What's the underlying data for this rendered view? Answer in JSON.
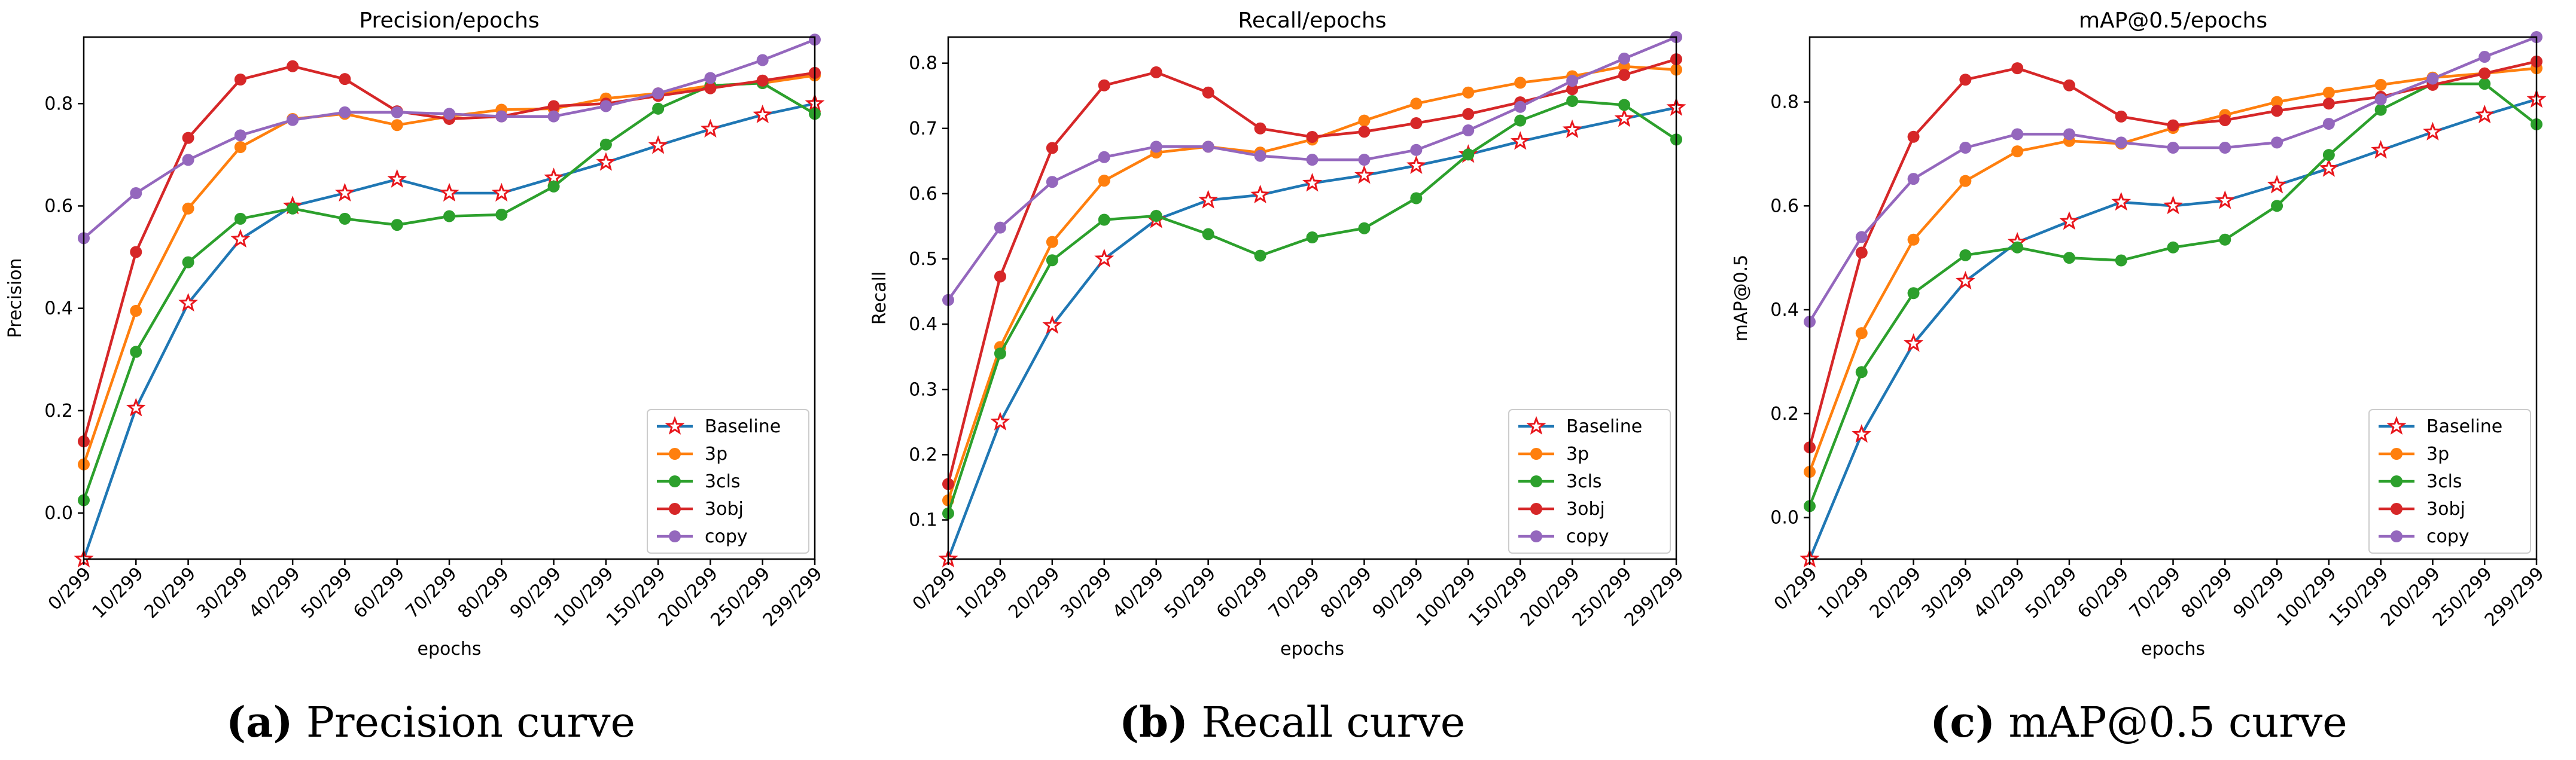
{
  "chart_data": [
    {
      "type": "line",
      "title": "Precision/epochs",
      "xlabel": "epochs",
      "ylabel": "Precision",
      "categories": [
        "0/299",
        "10/299",
        "20/299",
        "30/299",
        "40/299",
        "50/299",
        "60/299",
        "70/299",
        "80/299",
        "90/299",
        "100/299",
        "150/299",
        "200/299",
        "250/299",
        "299/299"
      ],
      "ylim": [
        -0.09,
        0.93
      ],
      "yticks": [
        0.0,
        0.2,
        0.4,
        0.6,
        0.8
      ],
      "ytick_labels": [
        "0.0",
        "0.2",
        "0.4",
        "0.6",
        "0.8"
      ],
      "legend_location": "lower-right",
      "series": [
        {
          "name": "Baseline",
          "color": "#1f77b4",
          "marker": "star",
          "values": [
            -0.09,
            0.205,
            0.41,
            0.535,
            0.6,
            0.625,
            0.652,
            0.625,
            0.625,
            0.655,
            0.685,
            0.718,
            0.75,
            0.778,
            0.8
          ]
        },
        {
          "name": "3p",
          "color": "#ff7f0e",
          "marker": "circle",
          "values": [
            0.095,
            0.395,
            0.595,
            0.715,
            0.77,
            0.78,
            0.758,
            0.775,
            0.788,
            0.79,
            0.81,
            0.82,
            0.835,
            0.84,
            0.855
          ]
        },
        {
          "name": "3cls",
          "color": "#2ca02c",
          "marker": "circle",
          "values": [
            0.025,
            0.315,
            0.49,
            0.575,
            0.595,
            0.575,
            0.563,
            0.58,
            0.583,
            0.638,
            0.72,
            0.79,
            0.835,
            0.84,
            0.78
          ]
        },
        {
          "name": "3obj",
          "color": "#d62728",
          "marker": "circle",
          "values": [
            0.14,
            0.51,
            0.733,
            0.847,
            0.873,
            0.848,
            0.785,
            0.77,
            0.775,
            0.795,
            0.8,
            0.815,
            0.83,
            0.845,
            0.86
          ]
        },
        {
          "name": "copy",
          "color": "#9467bd",
          "marker": "circle",
          "values": [
            0.537,
            0.625,
            0.69,
            0.738,
            0.768,
            0.783,
            0.783,
            0.78,
            0.775,
            0.775,
            0.795,
            0.82,
            0.85,
            0.885,
            0.925
          ]
        }
      ],
      "caption_letter": "(a)",
      "caption_text": " Precision curve"
    },
    {
      "type": "line",
      "title": "Recall/epochs",
      "xlabel": "epochs",
      "ylabel": "Recall",
      "categories": [
        "0/299",
        "10/299",
        "20/299",
        "30/299",
        "40/299",
        "50/299",
        "60/299",
        "70/299",
        "80/299",
        "90/299",
        "100/299",
        "150/299",
        "200/299",
        "250/299",
        "299/299"
      ],
      "ylim": [
        0.04,
        0.84
      ],
      "yticks": [
        0.1,
        0.2,
        0.3,
        0.4,
        0.5,
        0.6,
        0.7,
        0.8
      ],
      "ytick_labels": [
        "0.1",
        "0.2",
        "0.3",
        "0.4",
        "0.5",
        "0.6",
        "0.7",
        "0.8"
      ],
      "legend_location": "lower-right",
      "series": [
        {
          "name": "Baseline",
          "color": "#1f77b4",
          "marker": "star",
          "values": [
            0.04,
            0.25,
            0.398,
            0.5,
            0.56,
            0.59,
            0.598,
            0.616,
            0.628,
            0.643,
            0.66,
            0.68,
            0.698,
            0.715,
            0.732
          ]
        },
        {
          "name": "3p",
          "color": "#ff7f0e",
          "marker": "circle",
          "values": [
            0.13,
            0.365,
            0.526,
            0.62,
            0.663,
            0.672,
            0.663,
            0.683,
            0.712,
            0.738,
            0.755,
            0.77,
            0.78,
            0.795,
            0.79
          ]
        },
        {
          "name": "3cls",
          "color": "#2ca02c",
          "marker": "circle",
          "values": [
            0.11,
            0.355,
            0.498,
            0.56,
            0.566,
            0.538,
            0.505,
            0.533,
            0.547,
            0.593,
            0.66,
            0.712,
            0.742,
            0.736,
            0.683
          ]
        },
        {
          "name": "3obj",
          "color": "#d62728",
          "marker": "circle",
          "values": [
            0.155,
            0.473,
            0.67,
            0.766,
            0.786,
            0.755,
            0.7,
            0.687,
            0.695,
            0.708,
            0.722,
            0.74,
            0.76,
            0.782,
            0.806
          ]
        },
        {
          "name": "copy",
          "color": "#9467bd",
          "marker": "circle",
          "values": [
            0.437,
            0.548,
            0.618,
            0.656,
            0.672,
            0.672,
            0.658,
            0.652,
            0.652,
            0.667,
            0.697,
            0.733,
            0.773,
            0.807,
            0.84
          ]
        }
      ],
      "caption_letter": "(b)",
      "caption_text": " Recall curve"
    },
    {
      "type": "line",
      "title": "mAP@0.5/epochs",
      "xlabel": "epochs",
      "ylabel": "mAP@0.5",
      "categories": [
        "0/299",
        "10/299",
        "20/299",
        "30/299",
        "40/299",
        "50/299",
        "60/299",
        "70/299",
        "80/299",
        "90/299",
        "100/299",
        "150/299",
        "200/299",
        "250/299",
        "299/299"
      ],
      "ylim": [
        -0.08,
        0.925
      ],
      "yticks": [
        0.0,
        0.2,
        0.4,
        0.6,
        0.8
      ],
      "ytick_labels": [
        "0.0",
        "0.2",
        "0.4",
        "0.6",
        "0.8"
      ],
      "legend_location": "lower-right",
      "series": [
        {
          "name": "Baseline",
          "color": "#1f77b4",
          "marker": "star",
          "values": [
            -0.08,
            0.16,
            0.335,
            0.455,
            0.53,
            0.57,
            0.607,
            0.6,
            0.61,
            0.64,
            0.672,
            0.707,
            0.742,
            0.775,
            0.805
          ]
        },
        {
          "name": "3p",
          "color": "#ff7f0e",
          "marker": "circle",
          "values": [
            0.088,
            0.355,
            0.535,
            0.648,
            0.705,
            0.725,
            0.72,
            0.75,
            0.775,
            0.8,
            0.818,
            0.833,
            0.847,
            0.855,
            0.865
          ]
        },
        {
          "name": "3cls",
          "color": "#2ca02c",
          "marker": "circle",
          "values": [
            0.022,
            0.28,
            0.432,
            0.505,
            0.52,
            0.5,
            0.495,
            0.52,
            0.535,
            0.6,
            0.698,
            0.785,
            0.835,
            0.835,
            0.757
          ]
        },
        {
          "name": "3obj",
          "color": "#d62728",
          "marker": "circle",
          "values": [
            0.135,
            0.51,
            0.733,
            0.843,
            0.865,
            0.832,
            0.772,
            0.755,
            0.765,
            0.783,
            0.797,
            0.81,
            0.833,
            0.855,
            0.878
          ]
        },
        {
          "name": "copy",
          "color": "#9467bd",
          "marker": "circle",
          "values": [
            0.377,
            0.54,
            0.652,
            0.712,
            0.738,
            0.738,
            0.722,
            0.712,
            0.712,
            0.722,
            0.758,
            0.805,
            0.845,
            0.887,
            0.925
          ]
        }
      ],
      "caption_letter": "(c)",
      "caption_text": " mAP@0.5 curve"
    }
  ]
}
